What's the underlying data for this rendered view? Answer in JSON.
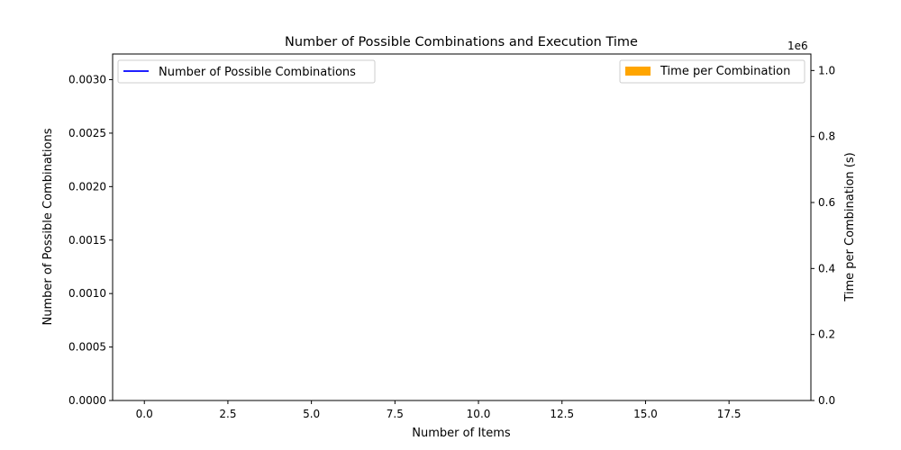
{
  "chart_data": {
    "type": "bar",
    "title": "Number of Possible Combinations and Execution Time",
    "xlabel": "Number of Items",
    "ylabel_left": "Number of Possible Combinations",
    "ylabel_right": "Time per Combination (s)",
    "xlim": [
      -0.95,
      19.95
    ],
    "ylim_left": [
      0,
      0.00324
    ],
    "ylim_right": [
      0,
      1050000
    ],
    "right_axis_offset_text": "1e6",
    "x_ticks": [
      0.0,
      2.5,
      5.0,
      7.5,
      10.0,
      12.5,
      15.0,
      17.5
    ],
    "x_tick_labels": [
      "0.0",
      "2.5",
      "5.0",
      "7.5",
      "10.0",
      "12.5",
      "15.0",
      "17.5"
    ],
    "y_left_ticks": [
      0.0,
      0.0005,
      0.001,
      0.0015,
      0.002,
      0.0025,
      0.003
    ],
    "y_left_tick_labels": [
      "0.0000",
      "0.0005",
      "0.0010",
      "0.0015",
      "0.0020",
      "0.0025",
      "0.0030"
    ],
    "y_right_ticks": [
      0,
      200000,
      400000,
      600000,
      800000,
      1000000
    ],
    "y_right_tick_labels": [
      "0.0",
      "0.2",
      "0.4",
      "0.6",
      "0.8",
      "1.0"
    ],
    "series": [
      {
        "name": "Number of Possible Combinations",
        "kind": "line",
        "axis": "left",
        "color": "#0000ff",
        "values": []
      },
      {
        "name": "Time per Combination",
        "kind": "bar",
        "axis": "right",
        "color": "#ffa500",
        "values": []
      }
    ],
    "legends": [
      {
        "placement": "upper-left",
        "entries": [
          "Number of Possible Combinations"
        ]
      },
      {
        "placement": "upper-right",
        "entries": [
          "Time per Combination"
        ]
      }
    ],
    "grid": false
  }
}
